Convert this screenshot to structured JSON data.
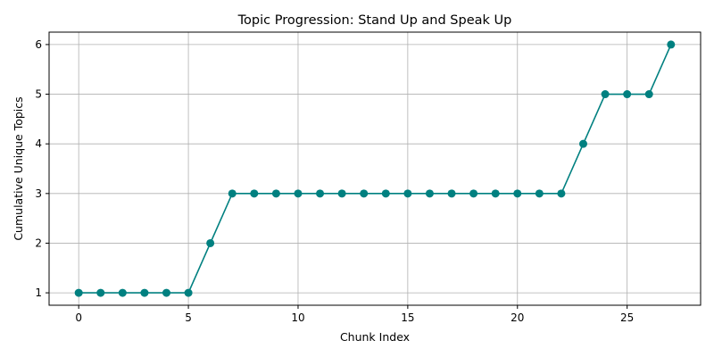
{
  "chart_data": {
    "type": "line",
    "title": "Topic Progression: Stand Up and Speak Up",
    "xlabel": "Chunk Index",
    "ylabel": "Cumulative Unique Topics",
    "xlim": [
      -1.35,
      28.35
    ],
    "ylim": [
      0.75,
      6.25
    ],
    "xticks": [
      0,
      5,
      10,
      15,
      20,
      25
    ],
    "yticks": [
      1,
      2,
      3,
      4,
      5,
      6
    ],
    "grid": true,
    "color": "#008080",
    "marker": "circle",
    "x": [
      0,
      1,
      2,
      3,
      4,
      5,
      6,
      7,
      8,
      9,
      10,
      11,
      12,
      13,
      14,
      15,
      16,
      17,
      18,
      19,
      20,
      21,
      22,
      23,
      24,
      25,
      26,
      27
    ],
    "y": [
      1,
      1,
      1,
      1,
      1,
      1,
      2,
      3,
      3,
      3,
      3,
      3,
      3,
      3,
      3,
      3,
      3,
      3,
      3,
      3,
      3,
      3,
      3,
      4,
      5,
      5,
      5,
      6
    ]
  }
}
